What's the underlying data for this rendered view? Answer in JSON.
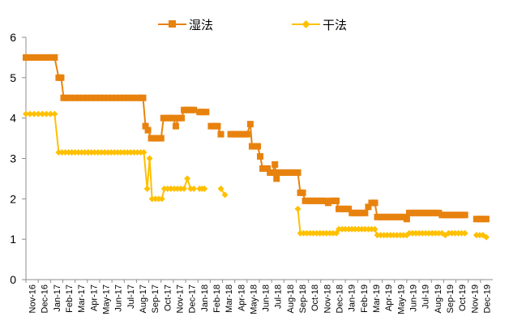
{
  "chart_data": {
    "type": "line",
    "title": "",
    "xlabel": "",
    "ylabel": "",
    "ylim": [
      0,
      6
    ],
    "yticks": [
      0,
      1,
      2,
      3,
      4,
      5,
      6
    ],
    "grid": false,
    "legend_position": "top-center",
    "x_tick_labels": [
      "Nov-16",
      "Dec-16",
      "Jan-17",
      "Feb-17",
      "Mar-17",
      "Apr-17",
      "May-17",
      "Jun-17",
      "Jul-17",
      "Aug-17",
      "Sep-17",
      "Oct-17",
      "Nov-17",
      "Dec-17",
      "Jan-18",
      "Feb-18",
      "Mar-18",
      "Apr-18",
      "May-18",
      "Jun-18",
      "Jul-18",
      "Aug-18",
      "Sep-18",
      "Oct-18",
      "Nov-18",
      "Dec-18",
      "Jan-19",
      "Feb-19",
      "Mar-19",
      "Apr-19",
      "May-19",
      "Jun-19",
      "Jul-19",
      "Aug-19",
      "Sep-19",
      "Oct-19",
      "Nov-19",
      "Dec-19"
    ],
    "series": [
      {
        "name": "湿法",
        "color": "#E8820E",
        "marker": "square",
        "points": [
          [
            0,
            5.5
          ],
          [
            0.5,
            5.5
          ],
          [
            1,
            5.5
          ],
          [
            1.5,
            5.5
          ],
          [
            2,
            5.5
          ],
          [
            2.5,
            5.5
          ],
          [
            3,
            5.5
          ],
          [
            3.5,
            5.5
          ],
          [
            4,
            5.0
          ],
          [
            4.3,
            5.0
          ],
          [
            4.6,
            4.5
          ],
          [
            5,
            4.5
          ],
          [
            5.5,
            4.5
          ],
          [
            6,
            4.5
          ],
          [
            6.5,
            4.5
          ],
          [
            7,
            4.5
          ],
          [
            7.5,
            4.5
          ],
          [
            8,
            4.5
          ],
          [
            8.5,
            4.5
          ],
          [
            9,
            4.5
          ],
          [
            9.5,
            4.5
          ],
          [
            10,
            4.5
          ],
          [
            10.5,
            4.5
          ],
          [
            11,
            4.5
          ],
          [
            11.5,
            4.5
          ],
          [
            12,
            4.5
          ],
          [
            12.5,
            4.5
          ],
          [
            13,
            4.5
          ],
          [
            13.5,
            4.5
          ],
          [
            14,
            4.5
          ],
          [
            14.3,
            4.5
          ],
          [
            14.6,
            3.8
          ],
          [
            14.9,
            3.7
          ],
          [
            15.3,
            3.5
          ],
          [
            15.7,
            3.5
          ],
          [
            16.1,
            3.5
          ],
          [
            16.5,
            3.5
          ],
          [
            16.8,
            4.0
          ],
          [
            17.2,
            4.0
          ],
          [
            17.6,
            4.0
          ],
          [
            18.0,
            4.0
          ],
          [
            18.3,
            3.8
          ],
          [
            18.6,
            4.0
          ],
          [
            19.0,
            4.0
          ],
          [
            19.3,
            4.2
          ],
          [
            19.7,
            4.2
          ],
          [
            20.1,
            4.2
          ],
          [
            20.5,
            4.2
          ],
          null,
          [
            21.2,
            4.15
          ],
          [
            21.6,
            4.15
          ],
          [
            22.0,
            4.15
          ],
          null,
          [
            22.6,
            3.8
          ],
          [
            23.0,
            3.8
          ],
          [
            23.4,
            3.8
          ],
          [
            23.8,
            3.6
          ],
          null,
          [
            25.0,
            3.6
          ],
          [
            25.4,
            3.6
          ],
          [
            25.8,
            3.6
          ],
          [
            26.2,
            3.6
          ],
          [
            26.6,
            3.6
          ],
          [
            27.0,
            3.6
          ],
          [
            27.4,
            3.85
          ],
          [
            27.6,
            3.3
          ],
          [
            28.0,
            3.3
          ],
          [
            28.3,
            3.3
          ],
          [
            28.6,
            3.05
          ],
          [
            28.9,
            2.75
          ],
          [
            29.2,
            2.75
          ],
          [
            29.5,
            2.75
          ],
          [
            29.8,
            2.65
          ],
          [
            30.1,
            2.65
          ],
          [
            30.4,
            2.85
          ],
          [
            30.6,
            2.5
          ],
          [
            30.9,
            2.65
          ],
          [
            31.2,
            2.65
          ],
          [
            31.6,
            2.65
          ],
          [
            32.0,
            2.65
          ],
          [
            32.4,
            2.65
          ],
          [
            32.8,
            2.65
          ],
          [
            33.2,
            2.65
          ],
          [
            33.5,
            2.15
          ],
          [
            33.8,
            2.15
          ],
          [
            34.1,
            1.95
          ],
          [
            34.5,
            1.95
          ],
          [
            34.9,
            1.95
          ],
          [
            35.3,
            1.95
          ],
          [
            35.7,
            1.95
          ],
          [
            36.1,
            1.95
          ],
          [
            36.5,
            1.95
          ],
          [
            36.9,
            1.9
          ],
          [
            37.3,
            1.95
          ],
          [
            37.7,
            1.95
          ],
          [
            37.9,
            1.95
          ],
          [
            38.2,
            1.75
          ],
          [
            38.6,
            1.75
          ],
          [
            39.0,
            1.75
          ],
          [
            39.4,
            1.75
          ],
          [
            39.8,
            1.65
          ],
          [
            40.2,
            1.65
          ],
          [
            40.6,
            1.65
          ],
          [
            41.0,
            1.65
          ],
          [
            41.4,
            1.65
          ],
          [
            41.8,
            1.8
          ],
          [
            42.2,
            1.9
          ],
          [
            42.6,
            1.9
          ],
          [
            42.9,
            1.55
          ],
          [
            43.3,
            1.55
          ],
          [
            43.7,
            1.55
          ],
          [
            44.1,
            1.55
          ],
          [
            44.5,
            1.55
          ],
          [
            44.9,
            1.55
          ],
          [
            45.3,
            1.55
          ],
          [
            45.7,
            1.55
          ],
          [
            46.1,
            1.55
          ],
          [
            46.5,
            1.5
          ],
          [
            46.8,
            1.65
          ],
          [
            47.2,
            1.65
          ],
          [
            47.6,
            1.65
          ],
          [
            48.0,
            1.65
          ],
          [
            48.4,
            1.65
          ],
          [
            48.8,
            1.65
          ],
          [
            49.2,
            1.65
          ],
          [
            49.6,
            1.65
          ],
          [
            50.0,
            1.65
          ],
          [
            50.4,
            1.65
          ],
          [
            50.8,
            1.6
          ],
          [
            51.2,
            1.6
          ],
          [
            51.6,
            1.6
          ],
          [
            52.0,
            1.6
          ],
          [
            52.4,
            1.6
          ],
          [
            52.8,
            1.6
          ],
          [
            53.2,
            1.6
          ],
          [
            53.6,
            1.6
          ],
          null,
          [
            55.0,
            1.5
          ],
          [
            55.4,
            1.5
          ],
          [
            55.8,
            1.5
          ],
          [
            56.2,
            1.5
          ]
        ]
      },
      {
        "name": "干法",
        "color": "#FFC000",
        "marker": "diamond",
        "points": [
          [
            0,
            4.1
          ],
          [
            0.5,
            4.1
          ],
          [
            1,
            4.1
          ],
          [
            1.5,
            4.1
          ],
          [
            2,
            4.1
          ],
          [
            2.5,
            4.1
          ],
          [
            3,
            4.1
          ],
          [
            3.5,
            4.1
          ],
          [
            4,
            3.15
          ],
          [
            4.4,
            3.15
          ],
          [
            4.8,
            3.15
          ],
          [
            5.2,
            3.15
          ],
          [
            5.6,
            3.15
          ],
          [
            6,
            3.15
          ],
          [
            6.4,
            3.15
          ],
          [
            6.8,
            3.15
          ],
          [
            7.2,
            3.15
          ],
          [
            7.6,
            3.15
          ],
          [
            8,
            3.15
          ],
          [
            8.4,
            3.15
          ],
          [
            8.8,
            3.15
          ],
          [
            9.2,
            3.15
          ],
          [
            9.6,
            3.15
          ],
          [
            10,
            3.15
          ],
          [
            10.4,
            3.15
          ],
          [
            10.8,
            3.15
          ],
          [
            11.2,
            3.15
          ],
          [
            11.6,
            3.15
          ],
          [
            12,
            3.15
          ],
          [
            12.4,
            3.15
          ],
          [
            12.8,
            3.15
          ],
          [
            13.2,
            3.15
          ],
          [
            13.6,
            3.15
          ],
          [
            14.0,
            3.15
          ],
          [
            14.4,
            3.15
          ],
          [
            14.8,
            2.25
          ],
          [
            15.1,
            3.0
          ],
          [
            15.4,
            2.0
          ],
          [
            15.8,
            2.0
          ],
          [
            16.2,
            2.0
          ],
          [
            16.6,
            2.0
          ],
          [
            16.9,
            2.25
          ],
          [
            17.3,
            2.25
          ],
          [
            17.7,
            2.25
          ],
          [
            18.1,
            2.25
          ],
          [
            18.5,
            2.25
          ],
          [
            18.9,
            2.25
          ],
          [
            19.3,
            2.25
          ],
          [
            19.7,
            2.5
          ],
          [
            20.1,
            2.25
          ],
          [
            20.5,
            2.25
          ],
          null,
          [
            21.2,
            2.25
          ],
          [
            21.5,
            2.25
          ],
          [
            21.8,
            2.25
          ],
          null,
          [
            23.8,
            2.25
          ],
          [
            24.3,
            2.1
          ],
          null,
          [
            33.2,
            1.75
          ],
          [
            33.5,
            1.15
          ],
          [
            33.9,
            1.15
          ],
          [
            34.3,
            1.15
          ],
          [
            34.7,
            1.15
          ],
          [
            35.1,
            1.15
          ],
          [
            35.5,
            1.15
          ],
          [
            35.9,
            1.15
          ],
          [
            36.3,
            1.15
          ],
          [
            36.7,
            1.15
          ],
          [
            37.1,
            1.15
          ],
          [
            37.5,
            1.15
          ],
          [
            37.9,
            1.15
          ],
          [
            38.2,
            1.25
          ],
          [
            38.6,
            1.25
          ],
          [
            39.0,
            1.25
          ],
          [
            39.4,
            1.25
          ],
          [
            39.8,
            1.25
          ],
          [
            40.2,
            1.25
          ],
          [
            40.6,
            1.25
          ],
          [
            41.0,
            1.25
          ],
          [
            41.4,
            1.25
          ],
          [
            41.8,
            1.25
          ],
          [
            42.2,
            1.25
          ],
          [
            42.6,
            1.25
          ],
          [
            42.9,
            1.1
          ],
          [
            43.3,
            1.1
          ],
          [
            43.7,
            1.1
          ],
          [
            44.1,
            1.1
          ],
          [
            44.5,
            1.1
          ],
          [
            44.9,
            1.1
          ],
          [
            45.3,
            1.1
          ],
          [
            45.7,
            1.1
          ],
          [
            46.1,
            1.1
          ],
          [
            46.5,
            1.1
          ],
          [
            46.8,
            1.15
          ],
          [
            47.2,
            1.15
          ],
          [
            47.6,
            1.15
          ],
          [
            48.0,
            1.15
          ],
          [
            48.4,
            1.15
          ],
          [
            48.8,
            1.15
          ],
          [
            49.2,
            1.15
          ],
          [
            49.6,
            1.15
          ],
          [
            50.0,
            1.15
          ],
          [
            50.4,
            1.15
          ],
          [
            50.8,
            1.15
          ],
          [
            51.2,
            1.1
          ],
          [
            51.6,
            1.15
          ],
          [
            52.0,
            1.15
          ],
          [
            52.4,
            1.15
          ],
          [
            52.8,
            1.15
          ],
          [
            53.2,
            1.15
          ],
          [
            53.6,
            1.15
          ],
          null,
          [
            55.0,
            1.1
          ],
          [
            55.4,
            1.1
          ],
          [
            55.8,
            1.1
          ],
          [
            56.2,
            1.05
          ]
        ]
      }
    ]
  }
}
